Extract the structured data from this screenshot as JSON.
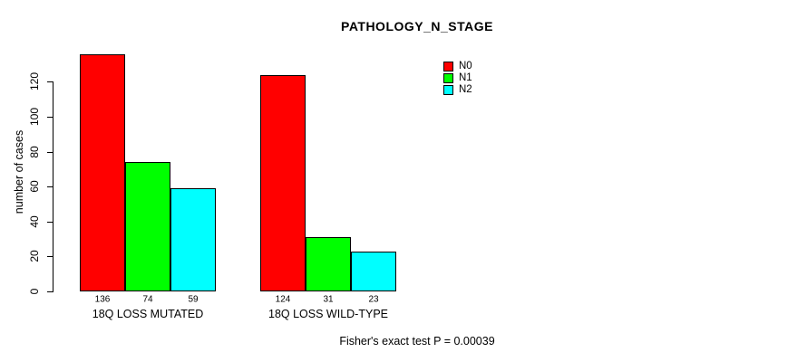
{
  "chart_data": {
    "type": "bar",
    "title": "PATHOLOGY_N_STAGE",
    "ylabel": "number of cases",
    "xlabel": "",
    "categories": [
      "18Q LOSS MUTATED",
      "18Q LOSS WILD-TYPE"
    ],
    "series": [
      {
        "name": "N0",
        "color": "#ff0000",
        "values": [
          136,
          124
        ]
      },
      {
        "name": "N1",
        "color": "#00ff00",
        "values": [
          74,
          31
        ]
      },
      {
        "name": "N2",
        "color": "#00ffff",
        "values": [
          59,
          23
        ]
      }
    ],
    "yticks": [
      0,
      20,
      40,
      60,
      80,
      100,
      120
    ],
    "ylim": [
      0,
      136
    ],
    "grid": false,
    "legend_position": "top-right",
    "annotation": "Fisher's exact test P = 0.00039"
  },
  "colors": {
    "axis": "#000000",
    "text": "#000000",
    "background": "#ffffff"
  }
}
